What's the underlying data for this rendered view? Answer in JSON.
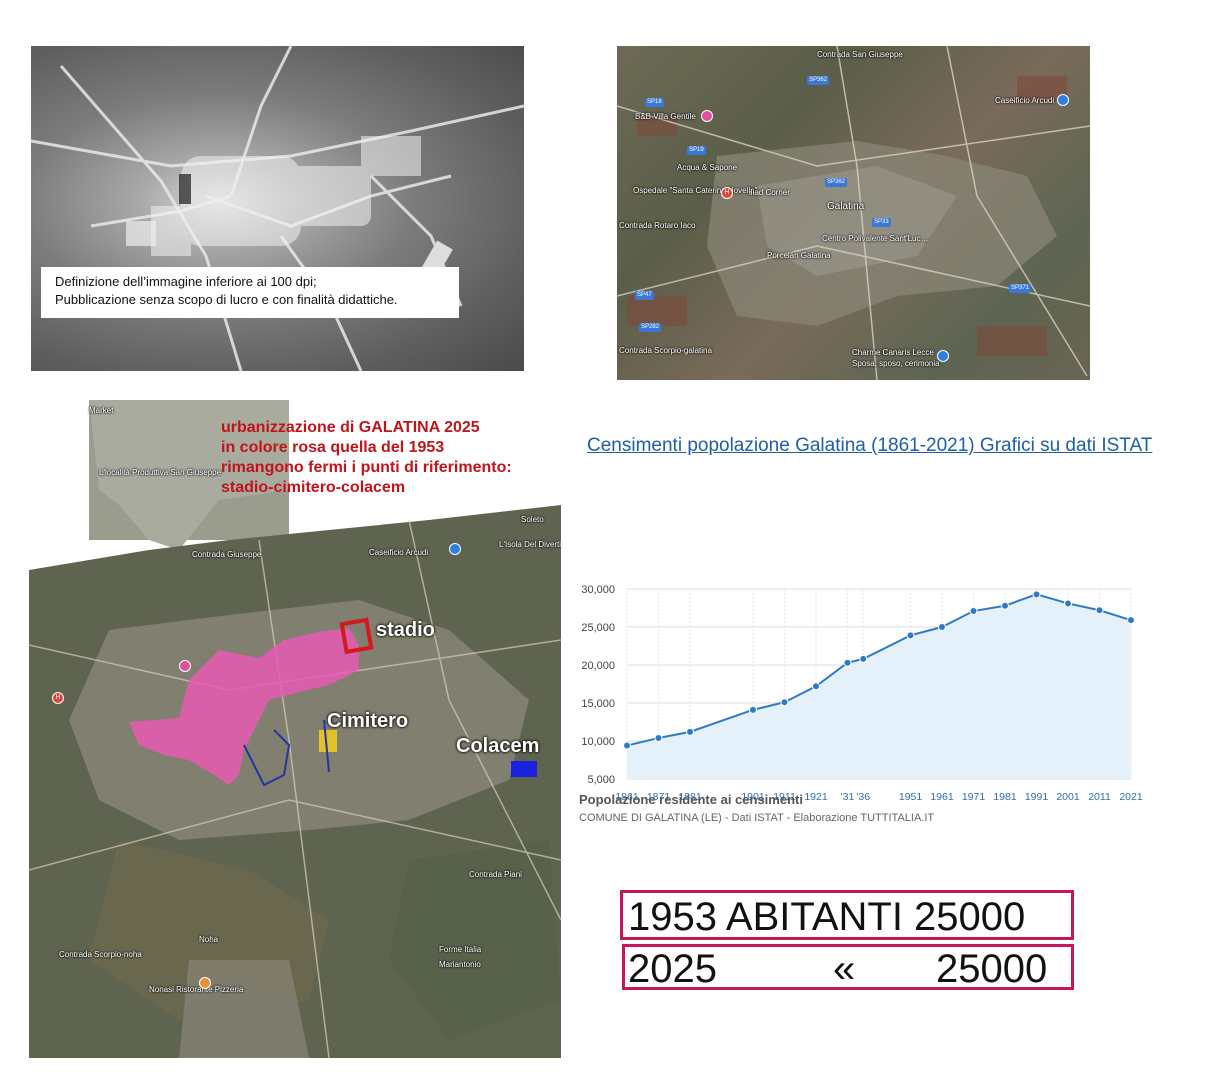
{
  "historical_photo": {
    "note_line1": "Definizione dell’immagine inferiore ai 100 dpi;",
    "note_line2": "Pubblicazione senza scopo di lucro e con finalità didattiche."
  },
  "satellite_map": {
    "labels": {
      "contrada_san_giuseppe": "Contrada San Giuseppe",
      "bb": "B&B Villa Gentile",
      "caseificio": "Caseificio Arcudi",
      "acqua": "Acqua & Sapone",
      "ospedale": "Ospedale \"Santa Caterina Novella\"",
      "iliad": "iliad Corner",
      "galatina": "Galatina",
      "centro": "Centro Polivalente Sant'Luc…",
      "porcelan": "Porcelan Galatina",
      "contrada_lacchi": "Contrada Rotaro Iaco",
      "contrada_scorpio": "Contrada Scorpio-galatina",
      "charme": "Charme Canaris Lecce",
      "charme_sub": "Sposa, sposo, cerimonia"
    },
    "roads": [
      "SP362",
      "SP18",
      "SP19",
      "SP47",
      "SP362",
      "SP371",
      "SP282",
      "SP33"
    ]
  },
  "overlay_map": {
    "title_line1": "urbanizzazione di GALATINA 2025",
    "title_line2": "in colore rosa quella del 1953",
    "title_line3": "rimangono fermi i punti di riferimento:",
    "title_line4": "stadio-cimitero-colacem",
    "label_stadio": "stadio",
    "label_cimitero": "Cimitero",
    "label_colacem": "Colacem",
    "small_labels": {
      "localita": "L'località Produttiva San Giuseppe",
      "contrada_giuseppe": "Contrada Giuseppe",
      "caseificio": "Caseificio Arcudi",
      "isola": "L'Isola Del Divertimento 2.0",
      "soleto": "Soleto",
      "contrada_piani": "Contrada Piani",
      "noha": "Noha",
      "forme": "Forme Italia",
      "mariantonio": "Mariantonio",
      "contrada_scorpio": "Contrada Scorpio-noha",
      "nonasi": "Nonasi Ristorante Pizzeria",
      "market": "Market"
    },
    "colors": {
      "urban_1953": "#e75bb4",
      "stadio": "#d21a1a",
      "colacem": "#1a22e0",
      "cimitero": "#e4c02a"
    }
  },
  "right_panel": {
    "link_text": "Censimenti popolazione Galatina (1861-2021) Grafici su dati ISTAT",
    "chart_title": "Popolazione residente ai censimenti",
    "chart_source": "COMUNE DI GALATINA (LE) - Dati ISTAT - Elaborazione TUTTITALIA.IT",
    "box1_text": "1953 ABITANTI 25000",
    "box2_year": "2025",
    "box2_mark": "«",
    "box2_value": "25000",
    "box_border_color": "#c2185b"
  },
  "chart_data": {
    "type": "area",
    "x_tick_labels": [
      "1861",
      "1871",
      "1881",
      "1901",
      "1911",
      "1921",
      "'31",
      "'36",
      "1951",
      "1961",
      "1971",
      "1981",
      "1991",
      "2001",
      "2011",
      "2021"
    ],
    "x": [
      1861,
      1871,
      1881,
      1901,
      1911,
      1921,
      1931,
      1936,
      1951,
      1961,
      1971,
      1981,
      1991,
      2001,
      2011,
      2021
    ],
    "values": [
      9400,
      10400,
      11200,
      14100,
      15100,
      17200,
      20300,
      20800,
      23900,
      25000,
      27100,
      27800,
      29300,
      28100,
      27200,
      25900
    ],
    "y_ticks": [
      "5,000",
      "10,000",
      "15,000",
      "20,000",
      "25,000",
      "30,000"
    ],
    "ylim": [
      5000,
      30000
    ],
    "xlim": [
      1861,
      2021
    ],
    "grid": true,
    "line_color": "#2d7bc4",
    "fill_color": "#e4f0fa"
  }
}
